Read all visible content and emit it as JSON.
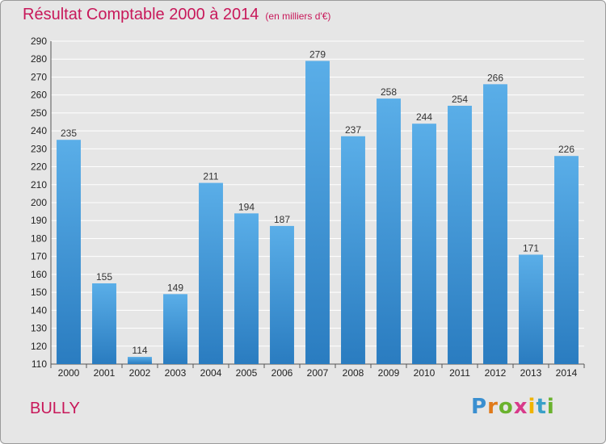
{
  "chart_data": {
    "type": "bar",
    "title": "Résultat Comptable 2000 à 2014",
    "unit_note": "(en milliers d'€)",
    "categories": [
      "2000",
      "2001",
      "2002",
      "2003",
      "2004",
      "2005",
      "2006",
      "2007",
      "2008",
      "2009",
      "2010",
      "2011",
      "2012",
      "2013",
      "2014"
    ],
    "values": [
      235,
      155,
      114,
      149,
      211,
      194,
      187,
      279,
      237,
      258,
      244,
      254,
      266,
      171,
      226
    ],
    "ylim": [
      110,
      290
    ],
    "yticks": [
      110,
      120,
      130,
      140,
      150,
      160,
      170,
      180,
      190,
      200,
      210,
      220,
      230,
      240,
      250,
      260,
      270,
      280,
      290
    ],
    "xlabel": "",
    "ylabel": "",
    "grid": true
  },
  "place_name": "BULLY",
  "logo": {
    "text": "Proxiti"
  },
  "colors": {
    "title": "#c8185a",
    "bar_top": "#5aaee8",
    "bar_bottom": "#2a7cc0",
    "grid": "#ffffff",
    "background": "#e6e6e6"
  }
}
